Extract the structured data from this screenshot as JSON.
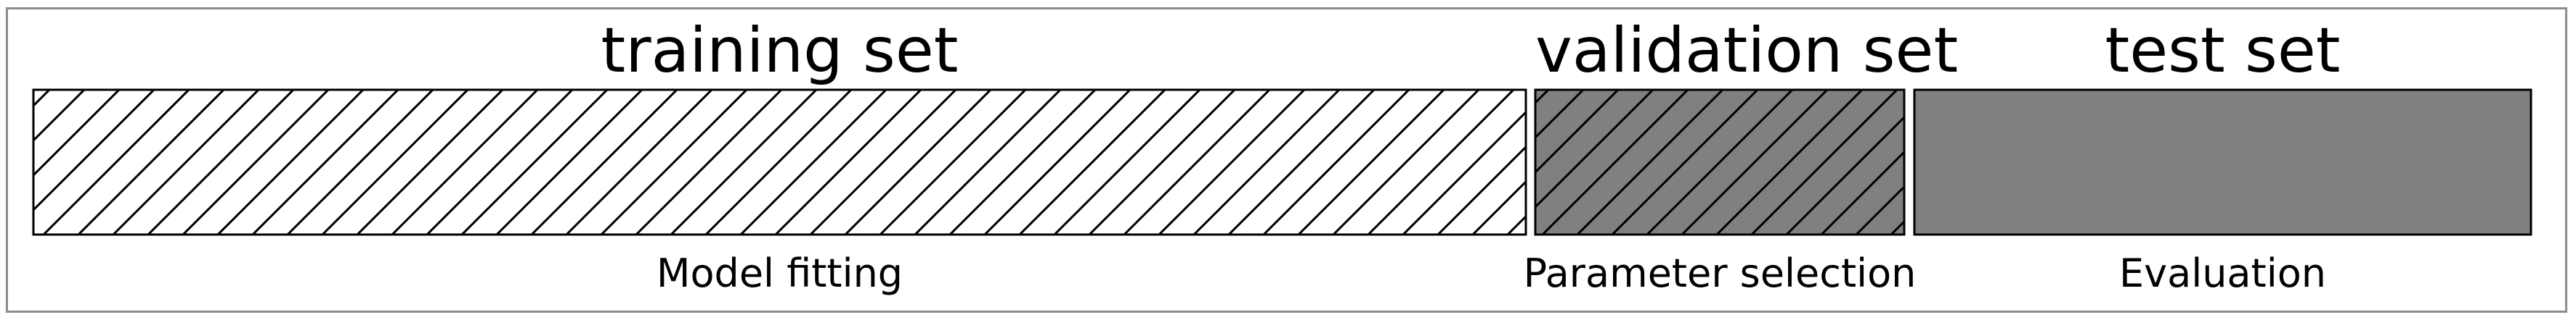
{
  "sections": [
    {
      "name": "training set",
      "caption": "Model fitting",
      "fill": "#ffffff",
      "hatched": true
    },
    {
      "name": "validation set",
      "caption": "Parameter selection",
      "fill": "#808080",
      "hatched": true
    },
    {
      "name": "test set",
      "caption": "Evaluation",
      "fill": "#808080",
      "hatched": false
    }
  ],
  "colors": {
    "border": "#8c8c8c",
    "outline": "#000000",
    "hatch": "#000000"
  }
}
